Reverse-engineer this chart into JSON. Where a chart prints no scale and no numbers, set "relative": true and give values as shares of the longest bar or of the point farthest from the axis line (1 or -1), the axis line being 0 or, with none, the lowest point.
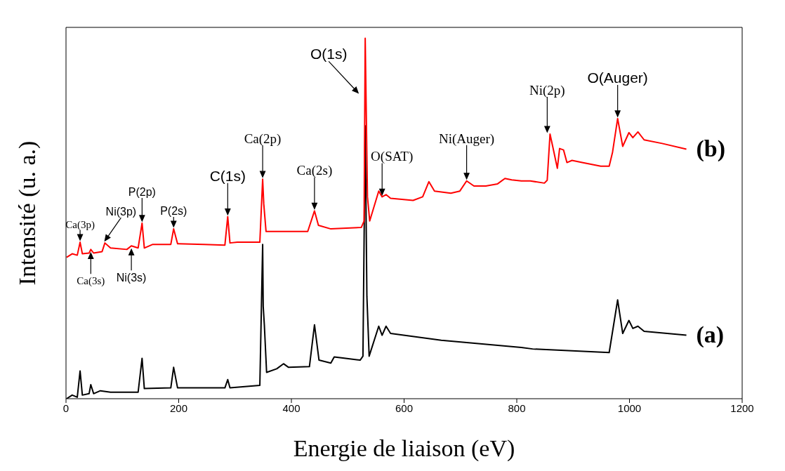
{
  "chart_data": {
    "type": "line",
    "xlabel": "Energie de liaison (eV)",
    "ylabel": "Intensité (u. a.)",
    "relative": true,
    "marker": "none",
    "xlim": [
      0,
      1200
    ],
    "xticks": [
      0,
      200,
      400,
      600,
      800,
      1000,
      1200
    ],
    "series": [
      {
        "name": "(a)",
        "color": "#000000",
        "x": [
          1,
          11,
          20,
          25,
          29,
          41,
          44,
          49,
          61,
          79,
          128,
          135,
          139,
          186,
          191,
          198,
          282,
          287,
          291,
          344,
          349,
          350,
          352,
          356,
          374,
          386,
          395,
          432,
          441,
          449,
          470,
          476,
          522,
          527,
          531,
          534,
          538,
          555,
          561,
          568,
          576,
          666,
          808,
          828,
          964,
          979,
          988,
          999,
          1006,
          1015,
          1026,
          1101
        ],
        "values": [
          0,
          0.01,
          0.004,
          0.077,
          0.01,
          0.014,
          0.039,
          0.014,
          0.022,
          0.018,
          0.018,
          0.112,
          0.028,
          0.03,
          0.087,
          0.03,
          0.03,
          0.053,
          0.03,
          0.037,
          0.428,
          0.256,
          0.205,
          0.073,
          0.083,
          0.097,
          0.087,
          0.089,
          0.205,
          0.107,
          0.099,
          0.116,
          0.107,
          0.118,
          0.757,
          0.284,
          0.118,
          0.201,
          0.176,
          0.201,
          0.181,
          0.162,
          0.142,
          0.138,
          0.128,
          0.274,
          0.181,
          0.217,
          0.195,
          0.201,
          0.187,
          0.176
        ]
      },
      {
        "name": "(b)",
        "color": "#ff0000",
        "x": [
          1,
          11,
          20,
          25,
          29,
          41,
          44,
          49,
          64,
          69,
          79,
          108,
          116,
          128,
          135,
          139,
          154,
          186,
          191,
          198,
          245,
          282,
          287,
          291,
          304,
          344,
          349,
          351,
          355,
          370,
          429,
          441,
          448,
          470,
          524,
          529,
          531,
          535,
          539,
          555,
          561,
          568,
          576,
          616,
          633,
          644,
          654,
          683,
          699,
          711,
          724,
          745,
          766,
          779,
          791,
          808,
          824,
          849,
          854,
          859,
          864,
          872,
          876,
          883,
          889,
          898,
          916,
          949,
          964,
          970,
          979,
          988,
          999,
          1006,
          1015,
          1026,
          1058,
          1101
        ],
        "values": [
          0.392,
          0.402,
          0.398,
          0.434,
          0.402,
          0.404,
          0.414,
          0.404,
          0.408,
          0.432,
          0.418,
          0.414,
          0.424,
          0.418,
          0.487,
          0.418,
          0.428,
          0.428,
          0.471,
          0.43,
          0.428,
          0.426,
          0.505,
          0.432,
          0.434,
          0.434,
          0.609,
          0.54,
          0.464,
          0.464,
          0.464,
          0.521,
          0.481,
          0.471,
          0.475,
          0.493,
          1.0,
          0.56,
          0.493,
          0.576,
          0.56,
          0.566,
          0.556,
          0.55,
          0.56,
          0.602,
          0.576,
          0.57,
          0.576,
          0.604,
          0.59,
          0.59,
          0.596,
          0.611,
          0.607,
          0.604,
          0.604,
          0.598,
          0.606,
          0.734,
          0.698,
          0.639,
          0.694,
          0.69,
          0.655,
          0.661,
          0.655,
          0.645,
          0.645,
          0.684,
          0.777,
          0.7,
          0.738,
          0.724,
          0.74,
          0.718,
          0.708,
          0.692
        ]
      }
    ],
    "annotations": [
      {
        "text": "Ca(3p)",
        "x": 25,
        "y": 0.434
      },
      {
        "text": "Ca(3s)",
        "x": 44,
        "y": 0.414
      },
      {
        "text": "Ni(3p)",
        "x": 69,
        "y": 0.432
      },
      {
        "text": "Ni(3s)",
        "x": 116,
        "y": 0.424
      },
      {
        "text": "P(2p)",
        "x": 135,
        "y": 0.487
      },
      {
        "text": "P(2s)",
        "x": 191,
        "y": 0.471
      },
      {
        "text": "C(1s)",
        "x": 287,
        "y": 0.505
      },
      {
        "text": "Ca(2p)",
        "x": 349,
        "y": 0.609
      },
      {
        "text": "Ca(2s)",
        "x": 441,
        "y": 0.521
      },
      {
        "text": "O(1s)",
        "x": 531,
        "y": 1.0
      },
      {
        "text": "O(SAT)",
        "x": 561,
        "y": 0.56
      },
      {
        "text": "Ni(Auger)",
        "x": 711,
        "y": 0.604
      },
      {
        "text": "Ni(2p)",
        "x": 859,
        "y": 0.734
      },
      {
        "text": "O(Auger)",
        "x": 979,
        "y": 0.777
      }
    ]
  }
}
